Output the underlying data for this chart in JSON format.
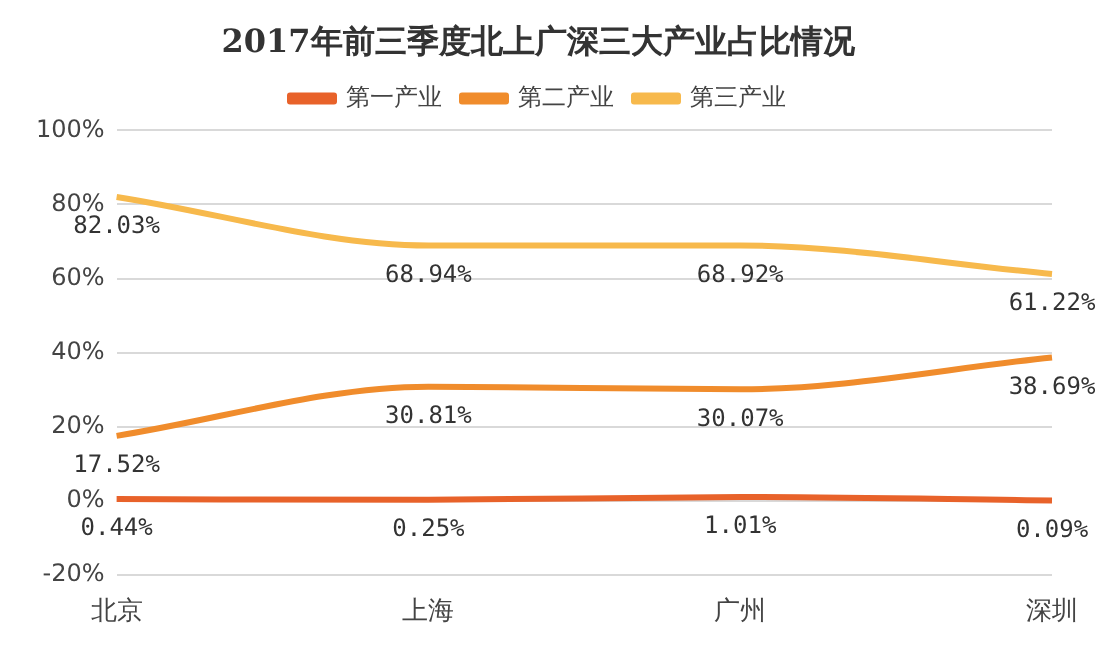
{
  "chart_data": {
    "type": "line",
    "title": "2017年前三季度北上广深三大产业占比情况",
    "categories": [
      "北京",
      "上海",
      "广州",
      "深圳"
    ],
    "series": [
      {
        "name": "第一产业",
        "color": "#e8622a",
        "values": [
          0.44,
          0.25,
          1.01,
          0.09
        ],
        "value_labels": [
          "0.44%",
          "0.25%",
          "1.01%",
          "0.09%"
        ]
      },
      {
        "name": "第二产业",
        "color": "#f08c2c",
        "values": [
          17.52,
          30.81,
          30.07,
          38.69
        ],
        "value_labels": [
          "17.52%",
          "30.81%",
          "30.07%",
          "38.69%"
        ]
      },
      {
        "name": "第三产业",
        "color": "#f7b94c",
        "values": [
          82.03,
          68.94,
          68.92,
          61.22
        ],
        "value_labels": [
          "82.03%",
          "68.94%",
          "68.92%",
          "61.22%"
        ]
      }
    ],
    "ylim": [
      -20,
      100
    ],
    "yticks": [
      {
        "value": -20,
        "label": "-20%"
      },
      {
        "value": 0,
        "label": "0%"
      },
      {
        "value": 20,
        "label": "20%"
      },
      {
        "value": 40,
        "label": "40%"
      },
      {
        "value": 60,
        "label": "60%"
      },
      {
        "value": 80,
        "label": "80%"
      },
      {
        "value": 100,
        "label": "100%"
      }
    ],
    "grid": "y",
    "legend": "top",
    "marker": "none",
    "line_style": "solid"
  }
}
